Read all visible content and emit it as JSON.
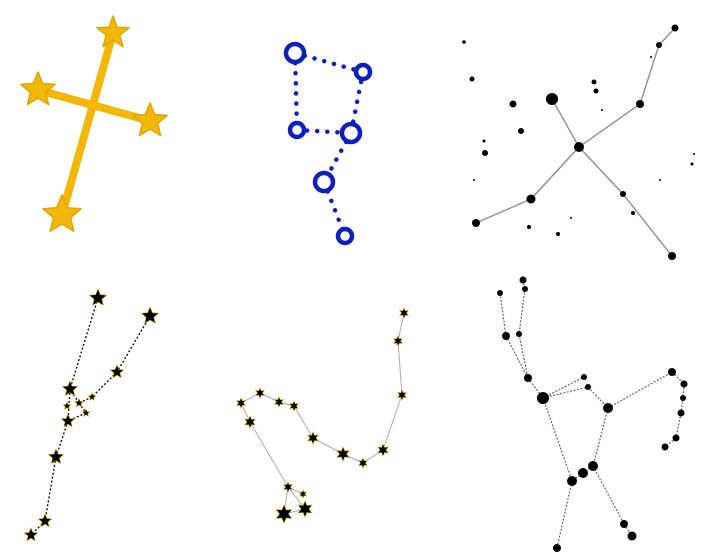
{
  "colors": {
    "background": "#ffffff",
    "cross": "#f2b707",
    "cross_edge": "#e0a500",
    "dotted_blue": "#0d1fbf",
    "black": "#000000",
    "line_gray": "#888888",
    "star_halo": "#c8a200"
  },
  "panels": [
    {
      "name": "golden-cross-constellation"
    },
    {
      "name": "blue-ring-dotted-constellation"
    },
    {
      "name": "x-shaped-dot-constellation"
    },
    {
      "name": "y-shaped-star-constellation"
    },
    {
      "name": "hook-star-constellation"
    },
    {
      "name": "figure-dot-constellation"
    }
  ]
}
